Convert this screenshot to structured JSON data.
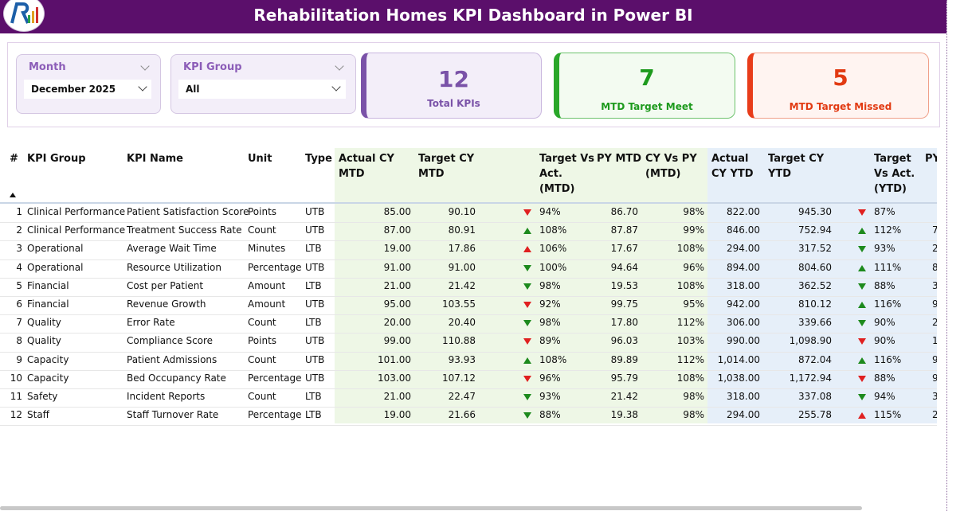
{
  "header": {
    "title": "Rehabilitation Homes KPI Dashboard in Power BI"
  },
  "colors": {
    "header_bg": "#5b0f6b",
    "accent_purple": "#7a52a8",
    "green": "#1d8a1d",
    "red": "#e02020"
  },
  "filters": {
    "month": {
      "label": "Month",
      "value": "December 2025"
    },
    "kpi_group": {
      "label": "KPI Group",
      "value": "All"
    }
  },
  "cards": {
    "total": {
      "value": "12",
      "label": "Total KPIs"
    },
    "meet": {
      "value": "7",
      "label": "MTD Target Meet"
    },
    "missed": {
      "value": "5",
      "label": "MTD Target Missed"
    }
  },
  "table": {
    "headers": {
      "num": "#",
      "group": "KPI Group",
      "name": "KPI Name",
      "unit": "Unit",
      "type": "Type",
      "actual_mtd": "Actual CY MTD",
      "target_mtd": "Target CY MTD",
      "tva_mtd": "Target Vs Act. (MTD)",
      "py_mtd": "PY MTD",
      "cyvspy_mtd": "CY Vs PY (MTD)",
      "actual_ytd": "Actual CY YTD",
      "target_ytd": "Target CY YTD",
      "tva_ytd": "Target Vs Act. (YTD)",
      "py_ytd": "PY"
    },
    "rows": [
      {
        "n": "1",
        "group": "Clinical Performance",
        "name": "Patient Satisfaction Score",
        "unit": "Points",
        "type": "UTB",
        "amtd": "85.00",
        "tmtd": "90.10",
        "mtd_dir": "down",
        "mtd_col": "red",
        "mtd_pct": "94%",
        "pymtd": "86.70",
        "cypy": "98%",
        "aytd": "822.00",
        "tytd": "945.30",
        "ytd_dir": "down",
        "ytd_col": "red",
        "ytd_pct": "87%",
        "pyytd": ""
      },
      {
        "n": "2",
        "group": "Clinical Performance",
        "name": "Treatment Success Rate",
        "unit": "Count",
        "type": "UTB",
        "amtd": "87.00",
        "tmtd": "80.91",
        "mtd_dir": "up",
        "mtd_col": "green",
        "mtd_pct": "108%",
        "pymtd": "87.87",
        "cypy": "99%",
        "aytd": "846.00",
        "tytd": "752.94",
        "ytd_dir": "up",
        "ytd_col": "green",
        "ytd_pct": "112%",
        "pyytd": "7"
      },
      {
        "n": "3",
        "group": "Operational",
        "name": "Average Wait Time",
        "unit": "Minutes",
        "type": "LTB",
        "amtd": "19.00",
        "tmtd": "17.86",
        "mtd_dir": "up",
        "mtd_col": "red",
        "mtd_pct": "106%",
        "pymtd": "17.67",
        "cypy": "108%",
        "aytd": "294.00",
        "tytd": "317.52",
        "ytd_dir": "down",
        "ytd_col": "green",
        "ytd_pct": "93%",
        "pyytd": "2"
      },
      {
        "n": "4",
        "group": "Operational",
        "name": "Resource Utilization",
        "unit": "Percentage",
        "type": "UTB",
        "amtd": "91.00",
        "tmtd": "91.00",
        "mtd_dir": "down",
        "mtd_col": "green",
        "mtd_pct": "100%",
        "pymtd": "94.64",
        "cypy": "96%",
        "aytd": "894.00",
        "tytd": "804.60",
        "ytd_dir": "up",
        "ytd_col": "green",
        "ytd_pct": "111%",
        "pyytd": "8"
      },
      {
        "n": "5",
        "group": "Financial",
        "name": "Cost per Patient",
        "unit": "Amount",
        "type": "LTB",
        "amtd": "21.00",
        "tmtd": "21.42",
        "mtd_dir": "down",
        "mtd_col": "green",
        "mtd_pct": "98%",
        "pymtd": "19.53",
        "cypy": "108%",
        "aytd": "318.00",
        "tytd": "362.52",
        "ytd_dir": "down",
        "ytd_col": "green",
        "ytd_pct": "88%",
        "pyytd": "3"
      },
      {
        "n": "6",
        "group": "Financial",
        "name": "Revenue Growth",
        "unit": "Amount",
        "type": "UTB",
        "amtd": "95.00",
        "tmtd": "103.55",
        "mtd_dir": "down",
        "mtd_col": "red",
        "mtd_pct": "92%",
        "pymtd": "99.75",
        "cypy": "95%",
        "aytd": "942.00",
        "tytd": "810.12",
        "ytd_dir": "up",
        "ytd_col": "green",
        "ytd_pct": "116%",
        "pyytd": "9"
      },
      {
        "n": "7",
        "group": "Quality",
        "name": "Error Rate",
        "unit": "Count",
        "type": "LTB",
        "amtd": "20.00",
        "tmtd": "20.40",
        "mtd_dir": "down",
        "mtd_col": "green",
        "mtd_pct": "98%",
        "pymtd": "17.80",
        "cypy": "112%",
        "aytd": "306.00",
        "tytd": "339.66",
        "ytd_dir": "down",
        "ytd_col": "green",
        "ytd_pct": "90%",
        "pyytd": "2"
      },
      {
        "n": "8",
        "group": "Quality",
        "name": "Compliance Score",
        "unit": "Points",
        "type": "UTB",
        "amtd": "99.00",
        "tmtd": "110.88",
        "mtd_dir": "down",
        "mtd_col": "red",
        "mtd_pct": "89%",
        "pymtd": "96.03",
        "cypy": "103%",
        "aytd": "990.00",
        "tytd": "1,098.90",
        "ytd_dir": "down",
        "ytd_col": "red",
        "ytd_pct": "90%",
        "pyytd": "1,"
      },
      {
        "n": "9",
        "group": "Capacity",
        "name": "Patient Admissions",
        "unit": "Count",
        "type": "UTB",
        "amtd": "101.00",
        "tmtd": "93.93",
        "mtd_dir": "up",
        "mtd_col": "green",
        "mtd_pct": "108%",
        "pymtd": "89.89",
        "cypy": "112%",
        "aytd": "1,014.00",
        "tytd": "872.04",
        "ytd_dir": "up",
        "ytd_col": "green",
        "ytd_pct": "116%",
        "pyytd": "9"
      },
      {
        "n": "10",
        "group": "Capacity",
        "name": "Bed Occupancy Rate",
        "unit": "Percentage",
        "type": "UTB",
        "amtd": "103.00",
        "tmtd": "107.12",
        "mtd_dir": "down",
        "mtd_col": "red",
        "mtd_pct": "96%",
        "pymtd": "95.79",
        "cypy": "108%",
        "aytd": "1,038.00",
        "tytd": "1,172.94",
        "ytd_dir": "down",
        "ytd_col": "red",
        "ytd_pct": "88%",
        "pyytd": "9"
      },
      {
        "n": "11",
        "group": "Safety",
        "name": "Incident Reports",
        "unit": "Count",
        "type": "LTB",
        "amtd": "21.00",
        "tmtd": "22.47",
        "mtd_dir": "down",
        "mtd_col": "green",
        "mtd_pct": "93%",
        "pymtd": "21.42",
        "cypy": "98%",
        "aytd": "318.00",
        "tytd": "337.08",
        "ytd_dir": "down",
        "ytd_col": "green",
        "ytd_pct": "94%",
        "pyytd": "3"
      },
      {
        "n": "12",
        "group": "Staff",
        "name": "Staff Turnover Rate",
        "unit": "Percentage",
        "type": "LTB",
        "amtd": "19.00",
        "tmtd": "21.66",
        "mtd_dir": "down",
        "mtd_col": "green",
        "mtd_pct": "88%",
        "pymtd": "19.38",
        "cypy": "98%",
        "aytd": "294.00",
        "tytd": "255.78",
        "ytd_dir": "up",
        "ytd_col": "red",
        "ytd_pct": "115%",
        "pyytd": "2"
      }
    ]
  }
}
